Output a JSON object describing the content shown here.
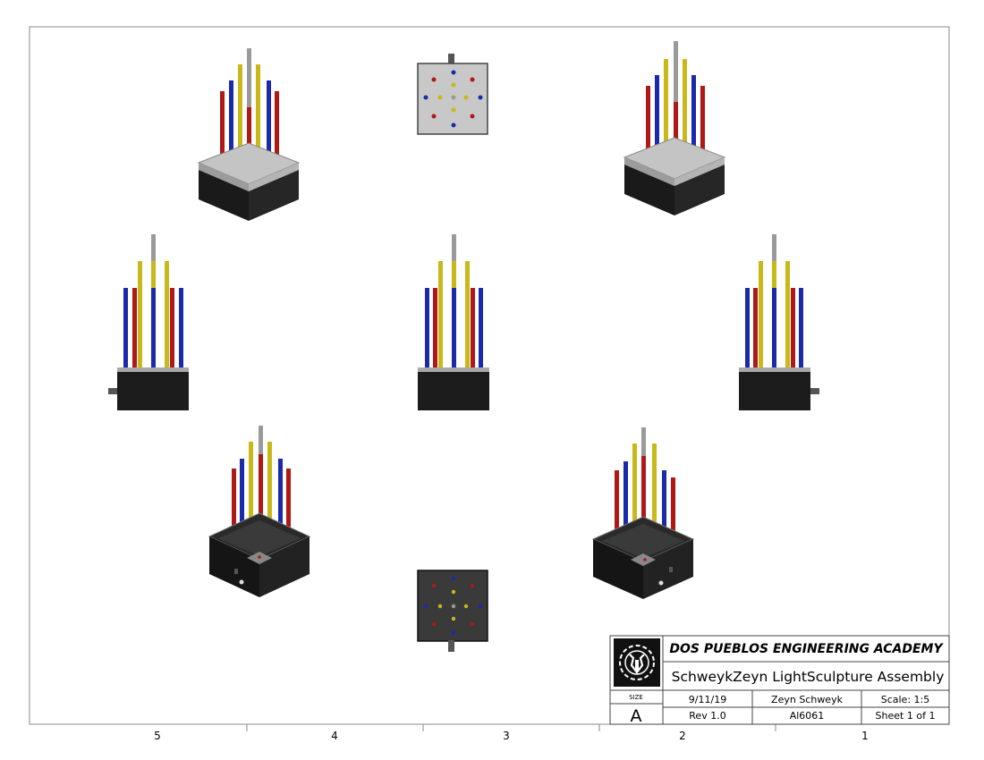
{
  "title_block": {
    "organization": "DOS PUEBLOS ENGINEERING ACADEMY",
    "drawing_title": "SchweykZeyn LightSculpture Assembly",
    "size_label": "SIZE",
    "size_value": "A",
    "date": "9/11/19",
    "revision": "Rev 1.0",
    "author": "Zeyn Schweyk",
    "material": "Al6061",
    "scale": "Scale: 1:5",
    "sheet": "Sheet 1 of 1"
  },
  "zone_numbers": [
    "5",
    "4",
    "3",
    "2",
    "1"
  ],
  "colors": {
    "rod_red": "#b01818",
    "rod_blue": "#1a2aa8",
    "rod_yellow": "#c9b81a",
    "rod_gray": "#9a9a9a",
    "base_black": "#1c1c1c",
    "plate_gray": "#c4c4c4"
  },
  "views": [
    "top-left-isometric",
    "top-view",
    "top-right-isometric",
    "left-view",
    "front-view",
    "right-view",
    "bottom-left-isometric",
    "bottom-view",
    "bottom-right-isometric"
  ]
}
